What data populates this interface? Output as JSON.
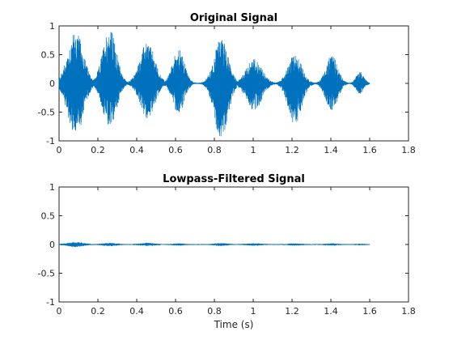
{
  "figure": {
    "background": "#ffffff",
    "line_color": "#0072bd"
  },
  "chart_data": [
    {
      "type": "line",
      "title": "Original Signal",
      "xlabel": "",
      "ylabel": "",
      "xlim": [
        0,
        1.8
      ],
      "ylim": [
        -1,
        1
      ],
      "xticks": [
        0,
        0.2,
        0.4,
        0.6,
        0.8,
        1,
        1.2,
        1.4,
        1.6,
        1.8
      ],
      "xtick_labels": [
        "0",
        "0.2",
        "0.4",
        "0.6",
        "0.8",
        "1",
        "1.2",
        "1.4",
        "1.6",
        "1.8"
      ],
      "yticks": [
        1,
        0.5,
        0,
        -0.5,
        -1
      ],
      "ytick_labels": [
        "1",
        "0.5",
        "0",
        "-0.5",
        "-1"
      ],
      "grid": false,
      "signal_end": 1.6,
      "bursts": [
        {
          "center": 0.085,
          "width": 0.04,
          "peak_pos": 0.9,
          "peak_neg": -0.92
        },
        {
          "center": 0.26,
          "width": 0.035,
          "peak_pos": 0.96,
          "peak_neg": -0.78
        },
        {
          "center": 0.455,
          "width": 0.038,
          "peak_pos": 0.72,
          "peak_neg": -0.6
        },
        {
          "center": 0.615,
          "width": 0.03,
          "peak_pos": 0.6,
          "peak_neg": -0.53
        },
        {
          "center": 0.835,
          "width": 0.035,
          "peak_pos": 0.79,
          "peak_neg": -0.95
        },
        {
          "center": 1.005,
          "width": 0.04,
          "peak_pos": 0.43,
          "peak_neg": -0.47
        },
        {
          "center": 1.215,
          "width": 0.035,
          "peak_pos": 0.5,
          "peak_neg": -0.72
        },
        {
          "center": 1.405,
          "width": 0.03,
          "peak_pos": 0.48,
          "peak_neg": -0.5
        },
        {
          "center": 1.55,
          "width": 0.02,
          "peak_pos": 0.2,
          "peak_neg": -0.18
        }
      ]
    },
    {
      "type": "line",
      "title": "Lowpass-Filtered Signal",
      "xlabel": "Time (s)",
      "ylabel": "",
      "xlim": [
        0,
        1.8
      ],
      "ylim": [
        -1,
        1
      ],
      "xticks": [
        0,
        0.2,
        0.4,
        0.6,
        0.8,
        1,
        1.2,
        1.4,
        1.6,
        1.8
      ],
      "xtick_labels": [
        "0",
        "0.2",
        "0.4",
        "0.6",
        "0.8",
        "1",
        "1.2",
        "1.4",
        "1.6",
        "1.8"
      ],
      "yticks": [
        1,
        0.5,
        0,
        -0.5,
        -1
      ],
      "ytick_labels": [
        "1",
        "0.5",
        "0",
        "-0.5",
        "-1"
      ],
      "grid": false,
      "signal_end": 1.6,
      "bursts": [
        {
          "center": 0.085,
          "width": 0.04,
          "peak_pos": 0.04,
          "peak_neg": -0.04
        },
        {
          "center": 0.26,
          "width": 0.035,
          "peak_pos": 0.025,
          "peak_neg": -0.025
        },
        {
          "center": 0.455,
          "width": 0.038,
          "peak_pos": 0.025,
          "peak_neg": -0.02
        },
        {
          "center": 0.615,
          "width": 0.03,
          "peak_pos": 0.015,
          "peak_neg": -0.015
        },
        {
          "center": 0.835,
          "width": 0.035,
          "peak_pos": 0.02,
          "peak_neg": -0.02
        },
        {
          "center": 1.005,
          "width": 0.04,
          "peak_pos": 0.015,
          "peak_neg": -0.015
        },
        {
          "center": 1.215,
          "width": 0.035,
          "peak_pos": 0.015,
          "peak_neg": -0.015
        },
        {
          "center": 1.405,
          "width": 0.03,
          "peak_pos": 0.015,
          "peak_neg": -0.015
        },
        {
          "center": 1.55,
          "width": 0.02,
          "peak_pos": 0.01,
          "peak_neg": -0.01
        }
      ]
    }
  ]
}
